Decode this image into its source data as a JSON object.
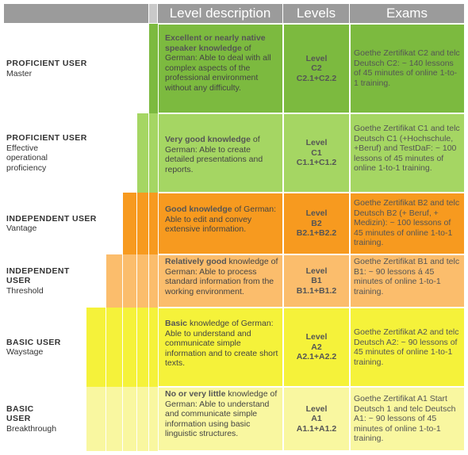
{
  "header": {
    "level_description": "Level description",
    "levels": "Levels",
    "exams": "Exams"
  },
  "colors": {
    "header_gray": "#9b9b9b",
    "c2_green": "#7cba3f",
    "c1_green": "#a5d663",
    "b2_orange": "#f79a1f",
    "b1_orange": "#fbbd6c",
    "a2_yellow": "#f5f23a",
    "a1_yellow": "#f9f7a0"
  },
  "rows": [
    {
      "group": "PROFICIENT  USER",
      "subgroup": "Master",
      "desc_bold": "Excellent or nearly native speaker knowledge",
      "desc_rest": " of German: Able to deal with all complex aspects of the professional environment without any difficulty.",
      "level_word": "Level",
      "level_code": "C2",
      "level_sub": "C2.1+C2.2",
      "exam": "Goethe Zertifikat C2 and telc Deutsch C2: ~ 140 lessons of 45 minutes of online 1-to-1 training."
    },
    {
      "group": "PROFICIENT  USER",
      "subgroup": "Effective operational proficiency",
      "desc_bold": "Very good knowledge",
      "desc_rest": " of German: Able to create detailed presentations and reports.",
      "level_word": "Level",
      "level_code": "C1",
      "level_sub": "C1.1+C1.2",
      "exam": "Goethe Zertifikat C1 and telc Deutsch C1 (+Hochschule, +Beruf) and TestDaF: ~ 100 lessons of 45 minutes of online 1-to-1 training."
    },
    {
      "group": "INDEPENDENT USER",
      "subgroup": "Vantage",
      "desc_bold": "Good knowledge",
      "desc_rest": " of German: Able to edit and convey extensive information.",
      "level_word": "Level",
      "level_code": "B2",
      "level_sub": "B2.1+B2.2",
      "exam": "Goethe Zertifikat B2 and telc Deutsch B2 (+ Beruf, + Medizin): ~ 100 lessons of 45 minutes of online 1-to-1 training."
    },
    {
      "group": "INDEPENDENT USER",
      "subgroup": "Threshold",
      "desc_bold": "Relatively good",
      "desc_rest": " knowledge of German: Able to process standard information from the working environment.",
      "level_word": "Level",
      "level_code": "B1",
      "level_sub": "B1.1+B1.2",
      "exam": "Goethe Zertifikat B1 and telc B1: ~ 90 lessons á 45 minutes of online 1-to-1 training."
    },
    {
      "group": "BASIC USER",
      "subgroup": "Waystage",
      "desc_bold": "Basic",
      "desc_rest": " knowledge of German: Able to understand and communicate simple information and to create short texts.",
      "level_word": "Level",
      "level_code": "A2",
      "level_sub": "A2.1+A2.2",
      "exam": "Goethe Zertifikat A2 and telc Deutsch A2: ~ 90 lessons of 45 minutes of online 1-to-1 training."
    },
    {
      "group": "BASIC USER",
      "subgroup": "Breakthrough",
      "desc_bold": "No or very little",
      "desc_rest": " knowledge of German: Able to understand and communicate simple information using basic linguistic structures.",
      "level_word": "Level",
      "level_code": "A1",
      "level_sub": "A1.1+A1.2",
      "exam": "Goethe Zertifikat A1 Start Deutsch 1 and telc Deutsch A1: ~ 90 lessons of 45 minutes of online 1-to-1 training."
    }
  ]
}
